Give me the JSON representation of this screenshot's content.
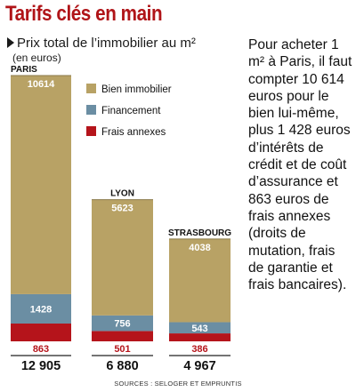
{
  "header": {
    "title": "Tarifs clés en main",
    "subtitle": "Prix total de l’immobilier au m²",
    "unit": "(en euros)"
  },
  "colors": {
    "title": "#b01418",
    "bien": "#b8a265",
    "financement": "#6b8ea3",
    "frais": "#b5141b"
  },
  "chart_data": {
    "type": "bar",
    "stacked": true,
    "categories": [
      "PARIS",
      "LYON",
      "STRASBOURG"
    ],
    "series": [
      {
        "name": "Bien immobilier",
        "values": [
          10614,
          5623,
          4038
        ],
        "labels": [
          "10614",
          "5623",
          "4038"
        ]
      },
      {
        "name": "Financement",
        "values": [
          1428,
          756,
          543
        ],
        "labels": [
          "1428",
          "756",
          "543"
        ]
      },
      {
        "name": "Frais annexes",
        "values": [
          863,
          501,
          386
        ],
        "labels": [
          "863",
          "501",
          "386"
        ]
      }
    ],
    "totals": [
      12905,
      6880,
      4967
    ],
    "total_labels": [
      "12 905",
      "6 880",
      "4 967"
    ],
    "legend_position": "top-right",
    "grid": false
  },
  "side_text": "Pour acheter 1 m² à Paris, il faut compter 10 614 euros pour le bien lui-même, plus 1 428 euros d’intérêts de crédit et de coût d’assurance et 863 euros de frais annexes (droits de mutation, frais de garantie et frais bancaires).",
  "sources": "SOURCES : SELOGER ET EMPRUNTIS"
}
